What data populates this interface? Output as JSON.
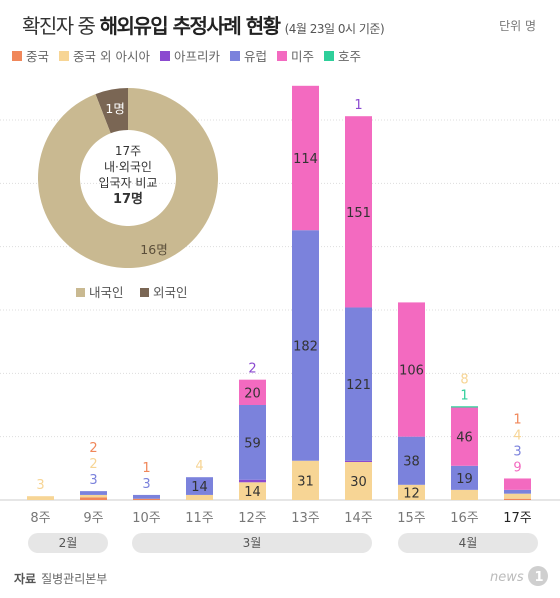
{
  "header": {
    "title_light": "확진자 중",
    "title_bold": "해외유입 추정사례 현황",
    "subtitle": "(4월 23일 0시 기준)",
    "unit": "단위 명"
  },
  "colors": {
    "china": "#f0875a",
    "china_other_asia": "#f7d595",
    "africa": "#8b4ad0",
    "europe": "#7b82dc",
    "americas": "#f36ac0",
    "australia": "#2ecf9a",
    "domestic": "#c9b991",
    "foreign": "#7a6654",
    "text_dark": "#333333",
    "text_grey": "#777777"
  },
  "legend": [
    {
      "label": "중국",
      "color": "#f0875a"
    },
    {
      "label": "중국 외 아시아",
      "color": "#f7d595"
    },
    {
      "label": "아프리카",
      "color": "#8b4ad0"
    },
    {
      "label": "유럽",
      "color": "#7b82dc"
    },
    {
      "label": "미주",
      "color": "#f36ac0"
    },
    {
      "label": "호주",
      "color": "#2ecf9a"
    }
  ],
  "months": [
    {
      "label": "2월"
    },
    {
      "label": "3월"
    },
    {
      "label": "4월"
    }
  ],
  "source": {
    "label": "자료",
    "text": "질병관리본부"
  },
  "logo": {
    "text": "news1"
  },
  "chart_data": [
    {
      "type": "bar",
      "stacked": true,
      "categories": [
        "8주",
        "9주",
        "10주",
        "11주",
        "12주",
        "13주",
        "14주",
        "15주",
        "16주",
        "17주"
      ],
      "highlight_category": "17주",
      "ylim": [
        0,
        330
      ],
      "grid": true,
      "series": [
        {
          "name": "중국",
          "color": "#f0875a",
          "values": [
            0,
            2,
            1,
            0,
            0,
            0,
            0,
            0,
            0,
            1
          ]
        },
        {
          "name": "중국 외 아시아",
          "color": "#f7d595",
          "values": [
            3,
            2,
            0,
            4,
            14,
            31,
            30,
            12,
            8,
            4
          ]
        },
        {
          "name": "아프리카",
          "color": "#8b4ad0",
          "values": [
            0,
            0,
            0,
            0,
            2,
            0,
            1,
            0,
            0,
            0
          ]
        },
        {
          "name": "유럽",
          "color": "#7b82dc",
          "values": [
            0,
            3,
            3,
            14,
            59,
            182,
            121,
            38,
            19,
            3
          ]
        },
        {
          "name": "미주",
          "color": "#f36ac0",
          "values": [
            0,
            0,
            0,
            0,
            20,
            114,
            151,
            106,
            46,
            9
          ]
        },
        {
          "name": "호주",
          "color": "#2ecf9a",
          "values": [
            0,
            0,
            0,
            0,
            0,
            0,
            0,
            0,
            1,
            0
          ]
        }
      ]
    },
    {
      "type": "pie",
      "donut": true,
      "center_text": [
        "17주",
        "내·외국인",
        "입국자 비교",
        "17명"
      ],
      "slices": [
        {
          "name": "내국인",
          "value": 16,
          "label": "16명",
          "color": "#c9b991"
        },
        {
          "name": "외국인",
          "value": 1,
          "label": "1명",
          "color": "#7a6654"
        }
      ],
      "legend_placement": "bottom"
    }
  ]
}
